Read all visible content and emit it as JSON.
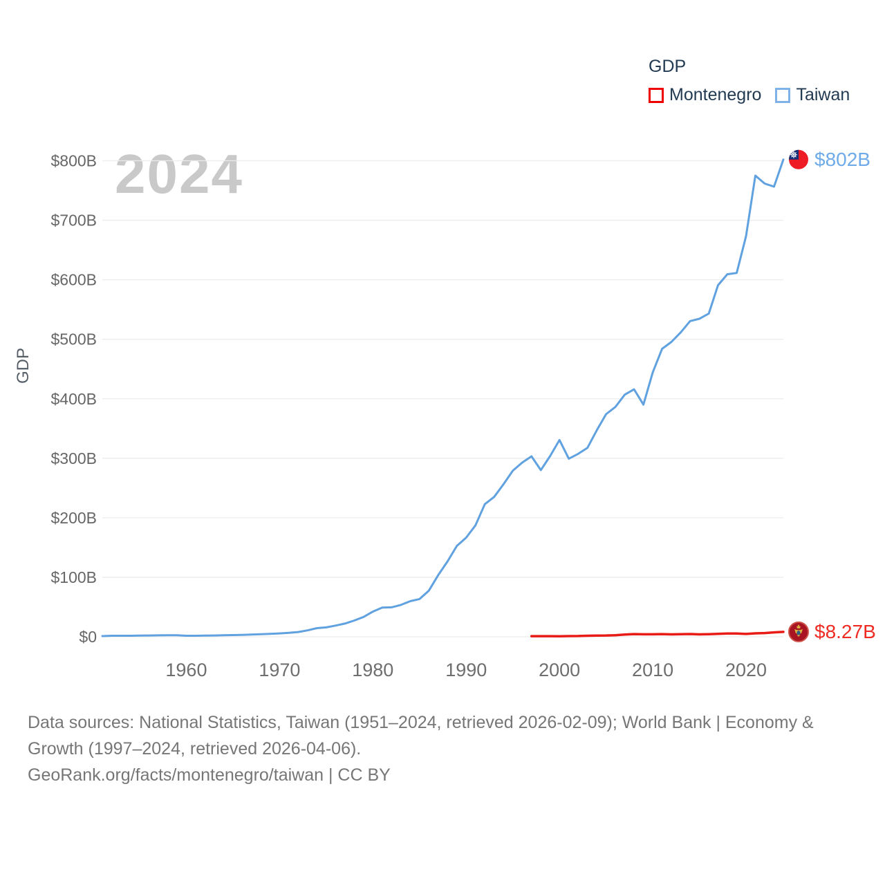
{
  "legend": {
    "title": "GDP",
    "items": [
      {
        "label": "Montenegro",
        "swatch_color": "#ee0000"
      },
      {
        "label": "Taiwan",
        "swatch_color": "#7fb3e8"
      }
    ]
  },
  "watermark": "2024",
  "y_axis_title": "GDP",
  "footer": {
    "line1": "Data sources: National Statistics, Taiwan (1951–2024, retrieved 2026-02-09); World Bank | Economy &",
    "line2": "Growth (1997–2024, retrieved 2026-04-06).",
    "line3": "GeoRank.org/facts/montenegro/taiwan | CC BY"
  },
  "chart_data": {
    "type": "line",
    "title": "GDP",
    "ylabel": "GDP",
    "xlabel": "",
    "watermark_year": "2024",
    "x_range": [
      1951,
      2024
    ],
    "ylim": [
      0,
      800
    ],
    "grid": "horizontal",
    "legend_position": "top-right",
    "units": "billions USD",
    "yticks": {
      "values": [
        0,
        100,
        200,
        300,
        400,
        500,
        600,
        700,
        800
      ],
      "labels": [
        "$0",
        "$100B",
        "$200B",
        "$300B",
        "$400B",
        "$500B",
        "$600B",
        "$700B",
        "$800B"
      ]
    },
    "xticks": {
      "values": [
        1960,
        1970,
        1980,
        1990,
        2000,
        2010,
        2020
      ],
      "labels": [
        "1960",
        "1970",
        "1980",
        "1990",
        "2000",
        "2010",
        "2020"
      ]
    },
    "series": [
      {
        "name": "Montenegro",
        "color": "#e81b17",
        "end_label": "$8.27B",
        "end_value": 8.27,
        "years": [
          1997,
          1998,
          1999,
          2000,
          2001,
          2002,
          2003,
          2004,
          2005,
          2006,
          2007,
          2008,
          2009,
          2010,
          2011,
          2012,
          2013,
          2014,
          2015,
          2016,
          2017,
          2018,
          2019,
          2020,
          2021,
          2022,
          2023,
          2024
        ],
        "values": [
          1.04,
          1.0,
          0.99,
          0.98,
          1.16,
          1.28,
          1.7,
          2.07,
          2.26,
          2.72,
          3.67,
          4.55,
          4.16,
          4.14,
          4.54,
          4.09,
          4.46,
          4.59,
          4.05,
          4.37,
          4.86,
          5.51,
          5.54,
          4.77,
          5.86,
          6.23,
          7.41,
          8.27
        ]
      },
      {
        "name": "Taiwan",
        "color": "#60a1e0",
        "end_label": "$802B",
        "end_value": 802,
        "years": [
          1951,
          1952,
          1953,
          1954,
          1955,
          1956,
          1957,
          1958,
          1959,
          1960,
          1961,
          1962,
          1963,
          1964,
          1965,
          1966,
          1967,
          1968,
          1969,
          1970,
          1971,
          1972,
          1973,
          1974,
          1975,
          1976,
          1977,
          1978,
          1979,
          1980,
          1981,
          1982,
          1983,
          1984,
          1985,
          1986,
          1987,
          1988,
          1989,
          1990,
          1991,
          1992,
          1993,
          1994,
          1995,
          1996,
          1997,
          1998,
          1999,
          2000,
          2001,
          2002,
          2003,
          2004,
          2005,
          2006,
          2007,
          2008,
          2009,
          2010,
          2011,
          2012,
          2013,
          2014,
          2015,
          2016,
          2017,
          2018,
          2019,
          2020,
          2021,
          2022,
          2023,
          2024
        ],
        "values": [
          1.2,
          1.7,
          1.7,
          1.8,
          2.0,
          2.2,
          2.4,
          2.5,
          2.6,
          1.7,
          1.8,
          2.0,
          2.2,
          2.6,
          2.9,
          3.2,
          3.7,
          4.3,
          4.9,
          5.7,
          6.6,
          8.0,
          10.8,
          14.5,
          15.8,
          18.8,
          22.2,
          27.3,
          33.3,
          42.3,
          49.2,
          49.5,
          53.6,
          59.8,
          63.4,
          77.6,
          103.6,
          126.5,
          152.7,
          166.6,
          187.3,
          222.9,
          235.1,
          256.3,
          279.1,
          292.7,
          303.3,
          280.1,
          303.8,
          330.7,
          299.3,
          307.4,
          317.4,
          346.9,
          374.1,
          386.4,
          406.9,
          415.9,
          390.2,
          444.3,
          483.9,
          495.6,
          511.6,
          530.5,
          534.5,
          543.1,
          590.8,
          609.3,
          611.4,
          673.2,
          775.0,
          761.6,
          756.6,
          802.0
        ]
      }
    ]
  }
}
